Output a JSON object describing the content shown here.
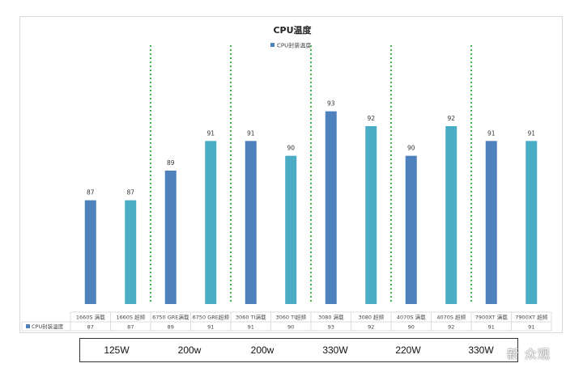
{
  "chart_data": {
    "type": "bar",
    "title": "CPU温度",
    "legend": "CPU封装温度",
    "legend_position": "top",
    "categories": [
      "1660S 满载",
      "1660S 超频",
      "6750 GRE满载",
      "6750 GRE超频",
      "3060 TI满载",
      "3060 TI超频",
      "3080 满载",
      "3080 超频",
      "4070S 满载",
      "4070S 超频",
      "7900XT 满载",
      "7900XT 超频"
    ],
    "values": [
      87,
      87,
      89,
      91,
      91,
      90,
      93,
      92,
      90,
      92,
      91,
      91
    ],
    "bar_colors": [
      "#4f81bd",
      "#4bacc6",
      "#4f81bd",
      "#4bacc6",
      "#4f81bd",
      "#4bacc6",
      "#4f81bd",
      "#4bacc6",
      "#4f81bd",
      "#4bacc6",
      "#4f81bd",
      "#4bacc6"
    ],
    "series": [
      {
        "name": "CPU封装温度",
        "values": [
          87,
          87,
          89,
          91,
          91,
          90,
          93,
          92,
          90,
          92,
          91,
          91
        ]
      }
    ],
    "table_series_label": "CPU封装温度",
    "ylim": [
      80,
      95
    ],
    "grid": false,
    "separator_color": "#3cb64a"
  },
  "power_row": [
    "125W",
    "200w",
    "200w",
    "330W",
    "220W",
    "330W"
  ],
  "watermark": "新 众观"
}
